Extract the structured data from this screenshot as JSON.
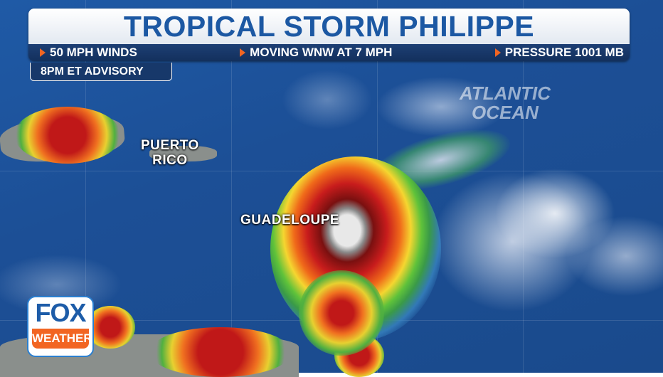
{
  "header": {
    "title": "TROPICAL STORM PHILIPPE",
    "facts": [
      {
        "icon": "triangle-right-icon",
        "text": "50 MPH WINDS"
      },
      {
        "icon": "triangle-right-icon",
        "text": "MOVING WNW AT 7 MPH"
      },
      {
        "icon": "triangle-right-icon",
        "text": "PRESSURE 1001 MB"
      }
    ],
    "advisory": "8PM ET ADVISORY"
  },
  "map_labels": {
    "puerto_rico": "PUERTO RICO",
    "guadeloupe": "GUADELOUPE",
    "ocean": "ATLANTIC OCEAN"
  },
  "logo": {
    "line1": "FOX",
    "line2": "WEATHER"
  },
  "colors": {
    "title_blue": "#1c58a3",
    "bar_navy": "#17386a",
    "accent_orange": "#f26522",
    "ocean_blue": "#1c4f96"
  }
}
